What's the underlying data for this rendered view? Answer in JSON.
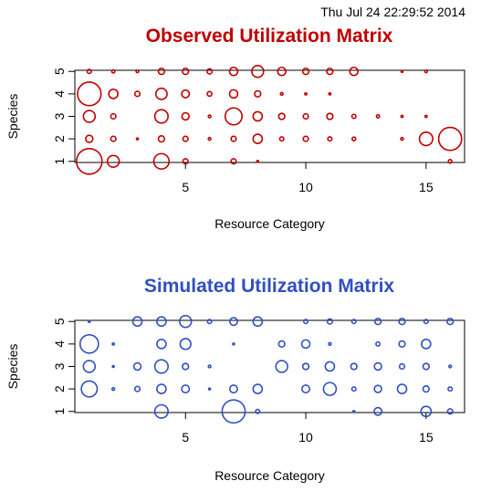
{
  "header": {
    "timestamp": "Thu Jul 24 22:29:52 2014"
  },
  "chart_data": [
    {
      "type": "scatter",
      "title": "Observed Utilization Matrix",
      "title_color": "#C00000",
      "marker_color": "#C00000",
      "xlabel": "Resource Category",
      "ylabel": "Species",
      "xlim": [
        0.4,
        16.6
      ],
      "ylim": [
        0.95,
        5.05
      ],
      "xticks": [
        5,
        10,
        15
      ],
      "yticks": [
        1,
        2,
        3,
        4,
        5
      ],
      "grid": false,
      "points": [
        {
          "x": 1,
          "y": 5,
          "size": 0.16
        },
        {
          "x": 2,
          "y": 5,
          "size": 0.12
        },
        {
          "x": 3,
          "y": 5,
          "size": 0.1
        },
        {
          "x": 4,
          "y": 5,
          "size": 0.24
        },
        {
          "x": 5,
          "y": 5,
          "size": 0.24
        },
        {
          "x": 6,
          "y": 5,
          "size": 0.2
        },
        {
          "x": 7,
          "y": 5,
          "size": 0.32
        },
        {
          "x": 8,
          "y": 5,
          "size": 0.46
        },
        {
          "x": 9,
          "y": 5,
          "size": 0.32
        },
        {
          "x": 10,
          "y": 5,
          "size": 0.24
        },
        {
          "x": 11,
          "y": 5,
          "size": 0.24
        },
        {
          "x": 12,
          "y": 5,
          "size": 0.32
        },
        {
          "x": 14,
          "y": 5,
          "size": 0.04
        },
        {
          "x": 15,
          "y": 5,
          "size": 0.1
        },
        {
          "x": 1,
          "y": 4,
          "size": 0.92
        },
        {
          "x": 2,
          "y": 4,
          "size": 0.36
        },
        {
          "x": 3,
          "y": 4,
          "size": 0.2
        },
        {
          "x": 4,
          "y": 4,
          "size": 0.44
        },
        {
          "x": 5,
          "y": 4,
          "size": 0.3
        },
        {
          "x": 6,
          "y": 4,
          "size": 0.18
        },
        {
          "x": 7,
          "y": 4,
          "size": 0.32
        },
        {
          "x": 8,
          "y": 4,
          "size": 0.24
        },
        {
          "x": 9,
          "y": 4,
          "size": 0.1
        },
        {
          "x": 10,
          "y": 4,
          "size": 0.08
        },
        {
          "x": 11,
          "y": 4,
          "size": 0.08
        },
        {
          "x": 1,
          "y": 3,
          "size": 0.46
        },
        {
          "x": 2,
          "y": 3,
          "size": 0.2
        },
        {
          "x": 4,
          "y": 3,
          "size": 0.52
        },
        {
          "x": 5,
          "y": 3,
          "size": 0.28
        },
        {
          "x": 6,
          "y": 3,
          "size": 0.1
        },
        {
          "x": 7,
          "y": 3,
          "size": 0.66
        },
        {
          "x": 8,
          "y": 3,
          "size": 0.36
        },
        {
          "x": 9,
          "y": 3,
          "size": 0.24
        },
        {
          "x": 10,
          "y": 3,
          "size": 0.2
        },
        {
          "x": 11,
          "y": 3,
          "size": 0.24
        },
        {
          "x": 12,
          "y": 3,
          "size": 0.16
        },
        {
          "x": 13,
          "y": 3,
          "size": 0.12
        },
        {
          "x": 14,
          "y": 3,
          "size": 0.08
        },
        {
          "x": 15,
          "y": 3,
          "size": 0.08
        },
        {
          "x": 1,
          "y": 2,
          "size": 0.28
        },
        {
          "x": 2,
          "y": 2,
          "size": 0.2
        },
        {
          "x": 3,
          "y": 2,
          "size": 0.06
        },
        {
          "x": 4,
          "y": 2,
          "size": 0.24
        },
        {
          "x": 5,
          "y": 2,
          "size": 0.2
        },
        {
          "x": 6,
          "y": 2,
          "size": 0.1
        },
        {
          "x": 7,
          "y": 2,
          "size": 0.2
        },
        {
          "x": 8,
          "y": 2,
          "size": 0.36
        },
        {
          "x": 9,
          "y": 2,
          "size": 0.16
        },
        {
          "x": 10,
          "y": 2,
          "size": 0.2
        },
        {
          "x": 11,
          "y": 2,
          "size": 0.16
        },
        {
          "x": 12,
          "y": 2,
          "size": 0.14
        },
        {
          "x": 14,
          "y": 2,
          "size": 0.1
        },
        {
          "x": 15,
          "y": 2,
          "size": 0.52
        },
        {
          "x": 16,
          "y": 2,
          "size": 0.9
        },
        {
          "x": 1,
          "y": 1,
          "size": 1.0
        },
        {
          "x": 2,
          "y": 1,
          "size": 0.46
        },
        {
          "x": 4,
          "y": 1,
          "size": 0.6
        },
        {
          "x": 5,
          "y": 1,
          "size": 0.2
        },
        {
          "x": 7,
          "y": 1,
          "size": 0.2
        },
        {
          "x": 8,
          "y": 1,
          "size": 0.06
        },
        {
          "x": 16,
          "y": 1,
          "size": 0.14
        }
      ]
    },
    {
      "type": "scatter",
      "title": "Simulated Utilization Matrix",
      "title_color": "#3050C0",
      "marker_color": "#3050C0",
      "xlabel": "Resource Category",
      "ylabel": "Species",
      "xlim": [
        0.4,
        16.6
      ],
      "ylim": [
        0.95,
        5.05
      ],
      "xticks": [
        5,
        10,
        15
      ],
      "yticks": [
        1,
        2,
        3,
        4,
        5
      ],
      "grid": false,
      "points": [
        {
          "x": 1,
          "y": 5,
          "size": 0.04
        },
        {
          "x": 3,
          "y": 5,
          "size": 0.36
        },
        {
          "x": 4,
          "y": 5,
          "size": 0.36
        },
        {
          "x": 5,
          "y": 5,
          "size": 0.46
        },
        {
          "x": 6,
          "y": 5,
          "size": 0.16
        },
        {
          "x": 7,
          "y": 5,
          "size": 0.3
        },
        {
          "x": 8,
          "y": 5,
          "size": 0.36
        },
        {
          "x": 10,
          "y": 5,
          "size": 0.16
        },
        {
          "x": 11,
          "y": 5,
          "size": 0.2
        },
        {
          "x": 12,
          "y": 5,
          "size": 0.16
        },
        {
          "x": 13,
          "y": 5,
          "size": 0.24
        },
        {
          "x": 14,
          "y": 5,
          "size": 0.24
        },
        {
          "x": 15,
          "y": 5,
          "size": 0.16
        },
        {
          "x": 16,
          "y": 5,
          "size": 0.24
        },
        {
          "x": 1,
          "y": 4,
          "size": 0.72
        },
        {
          "x": 2,
          "y": 4,
          "size": 0.08
        },
        {
          "x": 4,
          "y": 4,
          "size": 0.36
        },
        {
          "x": 5,
          "y": 4,
          "size": 0.42
        },
        {
          "x": 7,
          "y": 4,
          "size": 0.06
        },
        {
          "x": 9,
          "y": 4,
          "size": 0.24
        },
        {
          "x": 10,
          "y": 4,
          "size": 0.32
        },
        {
          "x": 11,
          "y": 4,
          "size": 0.1
        },
        {
          "x": 13,
          "y": 4,
          "size": 0.16
        },
        {
          "x": 14,
          "y": 4,
          "size": 0.24
        },
        {
          "x": 15,
          "y": 4,
          "size": 0.36
        },
        {
          "x": 1,
          "y": 3,
          "size": 0.46
        },
        {
          "x": 2,
          "y": 3,
          "size": 0.06
        },
        {
          "x": 3,
          "y": 3,
          "size": 0.28
        },
        {
          "x": 4,
          "y": 3,
          "size": 0.52
        },
        {
          "x": 5,
          "y": 3,
          "size": 0.24
        },
        {
          "x": 6,
          "y": 3,
          "size": 0.1
        },
        {
          "x": 9,
          "y": 3,
          "size": 0.46
        },
        {
          "x": 10,
          "y": 3,
          "size": 0.24
        },
        {
          "x": 11,
          "y": 3,
          "size": 0.36
        },
        {
          "x": 12,
          "y": 3,
          "size": 0.24
        },
        {
          "x": 13,
          "y": 3,
          "size": 0.28
        },
        {
          "x": 14,
          "y": 3,
          "size": 0.2
        },
        {
          "x": 15,
          "y": 3,
          "size": 0.24
        },
        {
          "x": 16,
          "y": 3,
          "size": 0.1
        },
        {
          "x": 1,
          "y": 2,
          "size": 0.62
        },
        {
          "x": 2,
          "y": 2,
          "size": 0.1
        },
        {
          "x": 3,
          "y": 2,
          "size": 0.2
        },
        {
          "x": 4,
          "y": 2,
          "size": 0.36
        },
        {
          "x": 5,
          "y": 2,
          "size": 0.3
        },
        {
          "x": 6,
          "y": 2,
          "size": 0.06
        },
        {
          "x": 7,
          "y": 2,
          "size": 0.3
        },
        {
          "x": 8,
          "y": 2,
          "size": 0.36
        },
        {
          "x": 10,
          "y": 2,
          "size": 0.3
        },
        {
          "x": 11,
          "y": 2,
          "size": 0.5
        },
        {
          "x": 12,
          "y": 2,
          "size": 0.16
        },
        {
          "x": 13,
          "y": 2,
          "size": 0.28
        },
        {
          "x": 14,
          "y": 2,
          "size": 0.36
        },
        {
          "x": 15,
          "y": 2,
          "size": 0.24
        },
        {
          "x": 16,
          "y": 2,
          "size": 0.16
        },
        {
          "x": 4,
          "y": 1,
          "size": 0.52
        },
        {
          "x": 7,
          "y": 1,
          "size": 0.9
        },
        {
          "x": 8,
          "y": 1,
          "size": 0.16
        },
        {
          "x": 12,
          "y": 1,
          "size": 0.04
        },
        {
          "x": 13,
          "y": 1,
          "size": 0.3
        },
        {
          "x": 15,
          "y": 1,
          "size": 0.4
        },
        {
          "x": 16,
          "y": 1,
          "size": 0.2
        }
      ]
    }
  ]
}
